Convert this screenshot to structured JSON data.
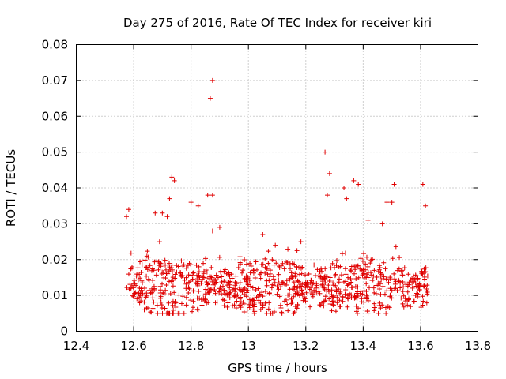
{
  "chart_data": {
    "type": "scatter",
    "title": "Day 275 of 2016, Rate Of TEC Index for receiver kiri",
    "xlabel": "GPS time / hours",
    "ylabel": "ROTI / TECUs",
    "xlim": [
      12.4,
      13.8
    ],
    "ylim": [
      0,
      0.08
    ],
    "xticks": [
      "12.4",
      "12.6",
      "12.8",
      "13",
      "13.2",
      "13.4",
      "13.6",
      "13.8"
    ],
    "yticks": [
      "0",
      "0.01",
      "0.02",
      "0.03",
      "0.04",
      "0.05",
      "0.06",
      "0.07",
      "0.08"
    ],
    "grid": true,
    "marker": "+",
    "color": "#e00000",
    "x_range_of_data": [
      12.575,
      13.625
    ],
    "outliers": [
      {
        "x": 12.875,
        "y": 0.07
      },
      {
        "x": 12.867,
        "y": 0.065
      },
      {
        "x": 13.267,
        "y": 0.05
      },
      {
        "x": 13.283,
        "y": 0.044
      },
      {
        "x": 12.733,
        "y": 0.043
      },
      {
        "x": 12.742,
        "y": 0.042
      },
      {
        "x": 13.367,
        "y": 0.042
      },
      {
        "x": 13.383,
        "y": 0.041
      },
      {
        "x": 13.508,
        "y": 0.041
      },
      {
        "x": 13.608,
        "y": 0.041
      },
      {
        "x": 13.333,
        "y": 0.04
      },
      {
        "x": 12.858,
        "y": 0.038
      },
      {
        "x": 12.875,
        "y": 0.038
      },
      {
        "x": 13.275,
        "y": 0.038
      },
      {
        "x": 12.725,
        "y": 0.037
      },
      {
        "x": 13.342,
        "y": 0.037
      },
      {
        "x": 12.825,
        "y": 0.035
      },
      {
        "x": 13.617,
        "y": 0.035
      },
      {
        "x": 12.583,
        "y": 0.034
      },
      {
        "x": 12.575,
        "y": 0.032
      },
      {
        "x": 12.675,
        "y": 0.033
      },
      {
        "x": 12.7,
        "y": 0.033
      },
      {
        "x": 12.717,
        "y": 0.032
      },
      {
        "x": 12.8,
        "y": 0.036
      },
      {
        "x": 12.9,
        "y": 0.029
      },
      {
        "x": 13.417,
        "y": 0.031
      },
      {
        "x": 13.467,
        "y": 0.03
      },
      {
        "x": 13.5,
        "y": 0.036
      },
      {
        "x": 13.05,
        "y": 0.027
      },
      {
        "x": 13.183,
        "y": 0.025
      },
      {
        "x": 13.483,
        "y": 0.036
      },
      {
        "x": 12.875,
        "y": 0.028
      }
    ],
    "bulk_band": {
      "y_min": 0.005,
      "y_max": 0.025,
      "approx_points": 900
    },
    "seed": 275
  }
}
